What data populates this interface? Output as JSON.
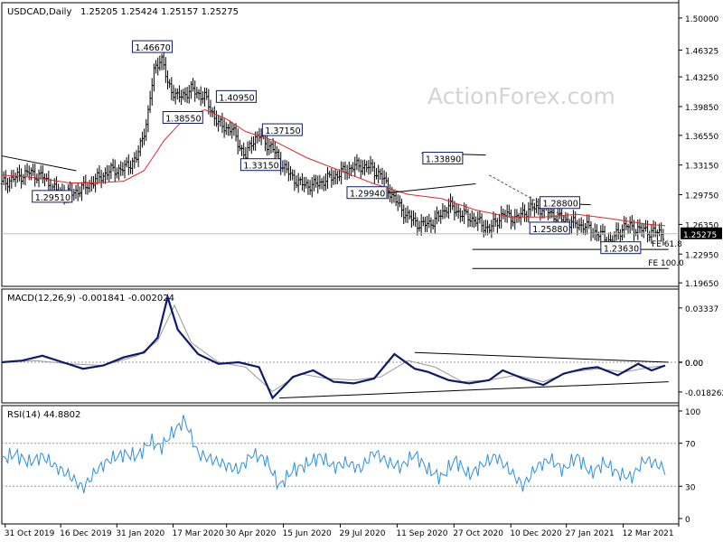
{
  "chart_data": [
    {
      "type": "candlestick",
      "panel": "price",
      "symbol": "USDCAD,Daily",
      "ohlc": [
        "1.25205",
        "1.25424",
        "1.25157",
        "1.25275"
      ],
      "watermark": "ActionForex.com",
      "ylim": [
        1.1925,
        1.5175
      ],
      "yticks": [
        "1.50000",
        "1.46325",
        "1.43250",
        "1.39850",
        "1.36550",
        "1.33150",
        "1.29750",
        "1.26350",
        "1.22950",
        "1.19650"
      ],
      "last_price": "1.25275",
      "series": [
        {
          "name": "close",
          "t": [
            0,
            0.02,
            0.04,
            0.06,
            0.08,
            0.1,
            0.12,
            0.14,
            0.16,
            0.18,
            0.2,
            0.215,
            0.225,
            0.235,
            0.245,
            0.26,
            0.28,
            0.3,
            0.32,
            0.34,
            0.36,
            0.37,
            0.38,
            0.4,
            0.42,
            0.44,
            0.46,
            0.48,
            0.5,
            0.52,
            0.54,
            0.56,
            0.58,
            0.6,
            0.62,
            0.64,
            0.66,
            0.68,
            0.7,
            0.72,
            0.74,
            0.76,
            0.78,
            0.8,
            0.82,
            0.84,
            0.86,
            0.88,
            0.9,
            0.92,
            0.94,
            0.96,
            0.98
          ],
          "y": [
            1.31,
            1.317,
            1.323,
            1.318,
            1.302,
            1.298,
            1.305,
            1.315,
            1.325,
            1.327,
            1.34,
            1.385,
            1.44,
            1.456,
            1.425,
            1.408,
            1.418,
            1.409,
            1.378,
            1.372,
            1.34,
            1.36,
            1.365,
            1.35,
            1.325,
            1.31,
            1.308,
            1.315,
            1.322,
            1.33,
            1.33,
            1.32,
            1.292,
            1.272,
            1.262,
            1.268,
            1.285,
            1.275,
            1.268,
            1.258,
            1.275,
            1.27,
            1.282,
            1.282,
            1.272,
            1.265,
            1.262,
            1.253,
            1.244,
            1.262,
            1.258,
            1.255,
            1.25275
          ]
        },
        {
          "name": "ma",
          "t": [
            0,
            0.05,
            0.1,
            0.14,
            0.18,
            0.21,
            0.24,
            0.27,
            0.3,
            0.33,
            0.36,
            0.4,
            0.45,
            0.5,
            0.55,
            0.6,
            0.65,
            0.7,
            0.75,
            0.8,
            0.85,
            0.9,
            0.95,
            0.98
          ],
          "y": [
            1.32,
            1.317,
            1.311,
            1.311,
            1.313,
            1.325,
            1.36,
            1.385,
            1.395,
            1.385,
            1.37,
            1.36,
            1.34,
            1.325,
            1.31,
            1.298,
            1.293,
            1.28,
            1.272,
            1.272,
            1.275,
            1.27,
            1.264,
            1.262
          ]
        }
      ],
      "annotations": [
        "1.46670",
        "1.38550",
        "1.40950",
        "1.37150",
        "1.33150",
        "1.29510",
        "1.29940",
        "1.33890",
        "1.28800",
        "1.25880",
        "1.23630",
        "FE 61.8",
        "FE 100.0"
      ]
    },
    {
      "type": "line",
      "panel": "macd",
      "label": "MACD(12,26,9) -0.001841 -0.002024",
      "yticks": [
        "0.03337",
        "0.00",
        "0.00",
        "-0.018262"
      ],
      "series": [
        {
          "name": "macd",
          "t": [
            0,
            0.03,
            0.06,
            0.09,
            0.12,
            0.15,
            0.18,
            0.21,
            0.23,
            0.245,
            0.26,
            0.29,
            0.32,
            0.35,
            0.38,
            0.4,
            0.43,
            0.46,
            0.49,
            0.52,
            0.55,
            0.58,
            0.61,
            0.63,
            0.66,
            0.69,
            0.72,
            0.74,
            0.77,
            0.8,
            0.83,
            0.86,
            0.88,
            0.91,
            0.94,
            0.96,
            0.98
          ],
          "y": [
            0.0,
            0.001,
            0.004,
            0.0,
            -0.004,
            -0.002,
            0.003,
            0.006,
            0.015,
            0.04,
            0.02,
            0.005,
            -0.001,
            0.0,
            -0.003,
            -0.022,
            -0.009,
            -0.005,
            -0.012,
            -0.013,
            -0.01,
            0.005,
            -0.004,
            -0.006,
            -0.011,
            -0.013,
            -0.011,
            -0.005,
            -0.01,
            -0.014,
            -0.007,
            -0.004,
            -0.003,
            -0.008,
            -0.001,
            -0.005,
            -0.002
          ]
        },
        {
          "name": "signal",
          "t": [
            0,
            0.05,
            0.1,
            0.15,
            0.2,
            0.23,
            0.255,
            0.28,
            0.32,
            0.36,
            0.4,
            0.44,
            0.48,
            0.52,
            0.56,
            0.6,
            0.64,
            0.68,
            0.72,
            0.76,
            0.8,
            0.84,
            0.88,
            0.92,
            0.96,
            0.98
          ],
          "y": [
            0.0,
            0.001,
            -0.001,
            -0.002,
            0.004,
            0.013,
            0.035,
            0.012,
            0.0,
            -0.003,
            -0.018,
            -0.007,
            -0.01,
            -0.011,
            -0.009,
            0.001,
            -0.003,
            -0.012,
            -0.011,
            -0.008,
            -0.012,
            -0.006,
            -0.004,
            -0.006,
            -0.003,
            -0.002
          ]
        }
      ]
    },
    {
      "type": "line",
      "panel": "rsi",
      "label": "RSI(14) 44.8802",
      "ylim": [
        0,
        100
      ],
      "yticks": [
        "100",
        "70",
        "30",
        "0"
      ],
      "series": [
        {
          "name": "rsi",
          "t": [
            0,
            0.02,
            0.04,
            0.06,
            0.08,
            0.1,
            0.12,
            0.14,
            0.16,
            0.18,
            0.2,
            0.22,
            0.235,
            0.25,
            0.27,
            0.29,
            0.31,
            0.33,
            0.35,
            0.37,
            0.39,
            0.41,
            0.43,
            0.45,
            0.47,
            0.49,
            0.51,
            0.53,
            0.55,
            0.57,
            0.59,
            0.61,
            0.63,
            0.65,
            0.67,
            0.69,
            0.71,
            0.73,
            0.75,
            0.77,
            0.79,
            0.81,
            0.83,
            0.85,
            0.87,
            0.89,
            0.91,
            0.93,
            0.95,
            0.97,
            0.98
          ],
          "y": [
            55,
            60,
            52,
            58,
            48,
            40,
            28,
            45,
            55,
            60,
            58,
            72,
            66,
            78,
            92,
            60,
            55,
            50,
            45,
            60,
            55,
            30,
            45,
            50,
            58,
            48,
            52,
            46,
            62,
            52,
            48,
            60,
            45,
            38,
            55,
            40,
            50,
            58,
            45,
            30,
            48,
            55,
            45,
            58,
            42,
            52,
            42,
            38,
            55,
            50,
            45
          ]
        }
      ]
    },
    {
      "type": "axis",
      "panel": "time",
      "dates": [
        "31 Oct 2019",
        "16 Dec 2019",
        "31 Jan 2020",
        "17 Mar 2020",
        "30 Apr 2020",
        "15 Jun 2020",
        "29 Jul 2020",
        "11 Sep 2020",
        "27 Oct 2020",
        "10 Dec 2020",
        "27 Jan 2021",
        "12 Mar 2021"
      ]
    }
  ],
  "colors": {
    "price": "#000000",
    "moving_average": "#e0292b",
    "macd": "#0d1a6e",
    "signal": "#999999",
    "rsi": "#2e8fe0",
    "label_box": "#0d1a6e",
    "watermark": "#d4d4d4"
  }
}
